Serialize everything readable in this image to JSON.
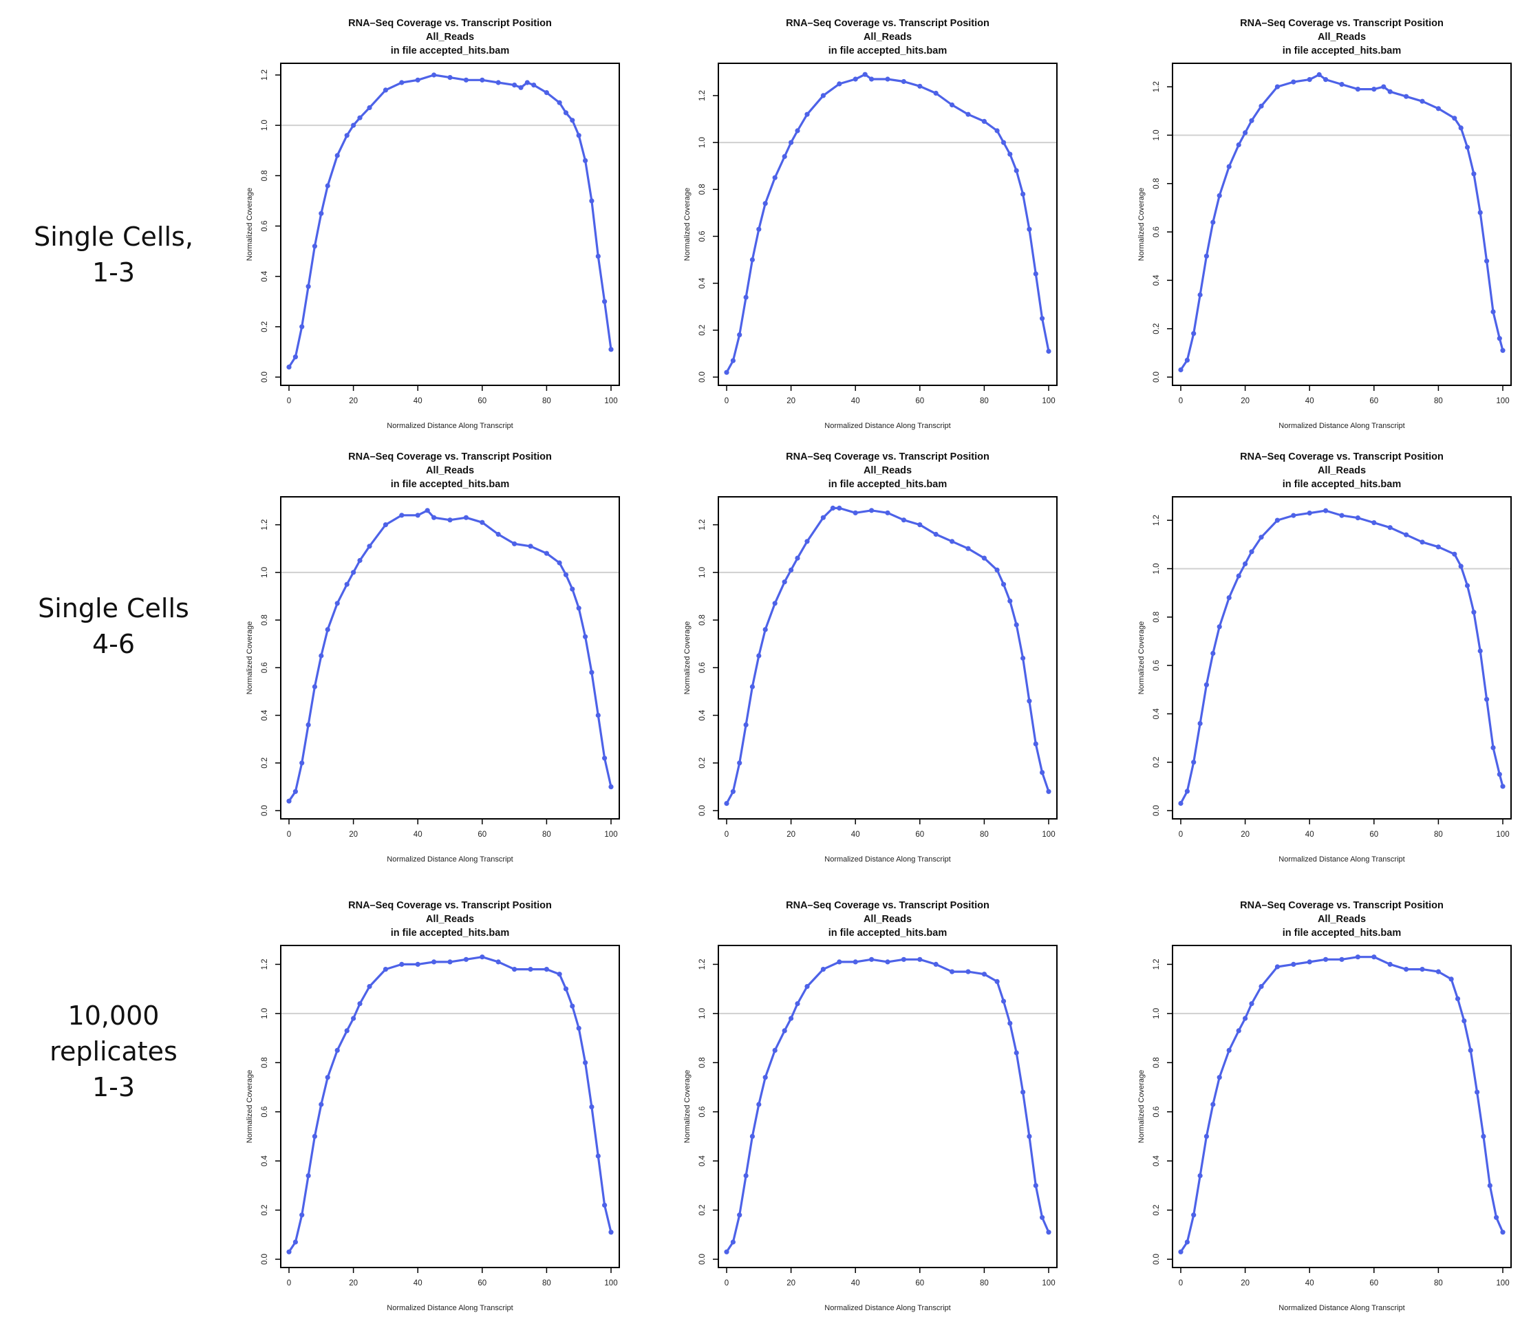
{
  "row_labels": [
    "Single Cells,\n1-3",
    "Single Cells\n4-6",
    "10,000 replicates\n1-3"
  ],
  "colors": {
    "series": "#4d62e8",
    "reference_line": "#d0d0d0",
    "frame": "#000000"
  },
  "chart_data": [
    {
      "type": "line",
      "title": [
        "RNA–Seq Coverage vs. Transcript Position",
        "All_Reads",
        "in file accepted_hits.bam"
      ],
      "xlabel": "Normalized Distance Along Transcript",
      "ylabel": "Normalized Coverage",
      "xlim": [
        0,
        100
      ],
      "ylim": [
        0,
        1.23
      ],
      "xticks": [
        "0",
        "20",
        "40",
        "60",
        "80",
        "100"
      ],
      "yticks": [
        "0.0",
        "0.2",
        "0.4",
        "0.6",
        "0.8",
        "1.0",
        "1.2"
      ],
      "reference_y": 1.0,
      "x": [
        0,
        2,
        4,
        6,
        8,
        10,
        12,
        15,
        18,
        20,
        22,
        25,
        30,
        35,
        40,
        45,
        50,
        55,
        60,
        65,
        70,
        72,
        74,
        76,
        80,
        84,
        86,
        88,
        90,
        92,
        94,
        96,
        98,
        100
      ],
      "values": [
        0.04,
        0.08,
        0.2,
        0.36,
        0.52,
        0.65,
        0.76,
        0.88,
        0.96,
        1.0,
        1.03,
        1.07,
        1.14,
        1.17,
        1.18,
        1.2,
        1.19,
        1.18,
        1.18,
        1.17,
        1.16,
        1.15,
        1.17,
        1.16,
        1.13,
        1.09,
        1.05,
        1.02,
        0.96,
        0.86,
        0.7,
        0.48,
        0.3,
        0.11
      ]
    },
    {
      "type": "line",
      "title": [
        "RNA–Seq Coverage vs. Transcript Position",
        "All_Reads",
        "in file accepted_hits.bam"
      ],
      "xlabel": "Normalized Distance Along Transcript",
      "ylabel": "Normalized Coverage",
      "xlim": [
        0,
        100
      ],
      "ylim": [
        0,
        1.32
      ],
      "xticks": [
        "0",
        "20",
        "40",
        "60",
        "80",
        "100"
      ],
      "yticks": [
        "0.0",
        "0.2",
        "0.4",
        "0.6",
        "0.8",
        "1.0",
        "1.2"
      ],
      "reference_y": 1.0,
      "x": [
        0,
        2,
        4,
        6,
        8,
        10,
        12,
        15,
        18,
        20,
        22,
        25,
        30,
        35,
        40,
        43,
        45,
        50,
        55,
        60,
        65,
        70,
        75,
        80,
        84,
        86,
        88,
        90,
        92,
        94,
        96,
        98,
        100
      ],
      "values": [
        0.02,
        0.07,
        0.18,
        0.34,
        0.5,
        0.63,
        0.74,
        0.85,
        0.94,
        1.0,
        1.05,
        1.12,
        1.2,
        1.25,
        1.27,
        1.29,
        1.27,
        1.27,
        1.26,
        1.24,
        1.21,
        1.16,
        1.12,
        1.09,
        1.05,
        1.0,
        0.95,
        0.88,
        0.78,
        0.63,
        0.44,
        0.25,
        0.11
      ]
    },
    {
      "type": "line",
      "title": [
        "RNA–Seq Coverage vs. Transcript Position",
        "All_Reads",
        "in file accepted_hits.bam"
      ],
      "xlabel": "Normalized Distance Along Transcript",
      "ylabel": "Normalized Coverage",
      "xlim": [
        0,
        100
      ],
      "ylim": [
        0,
        1.28
      ],
      "xticks": [
        "0",
        "20",
        "40",
        "60",
        "80",
        "100"
      ],
      "yticks": [
        "0.0",
        "0.2",
        "0.4",
        "0.6",
        "0.8",
        "1.0",
        "1.2"
      ],
      "reference_y": 1.0,
      "x": [
        0,
        2,
        4,
        6,
        8,
        10,
        12,
        15,
        18,
        20,
        22,
        25,
        30,
        35,
        40,
        43,
        45,
        50,
        55,
        60,
        63,
        65,
        70,
        75,
        80,
        85,
        87,
        89,
        91,
        93,
        95,
        97,
        99,
        100
      ],
      "values": [
        0.03,
        0.07,
        0.18,
        0.34,
        0.5,
        0.64,
        0.75,
        0.87,
        0.96,
        1.01,
        1.06,
        1.12,
        1.2,
        1.22,
        1.23,
        1.25,
        1.23,
        1.21,
        1.19,
        1.19,
        1.2,
        1.18,
        1.16,
        1.14,
        1.11,
        1.07,
        1.03,
        0.95,
        0.84,
        0.68,
        0.48,
        0.27,
        0.16,
        0.11
      ]
    },
    {
      "type": "line",
      "title": [
        "RNA–Seq Coverage vs. Transcript Position",
        "All_Reads",
        "in file accepted_hits.bam"
      ],
      "xlabel": "Normalized Distance Along Transcript",
      "ylabel": "Normalized Coverage",
      "xlim": [
        0,
        100
      ],
      "ylim": [
        0,
        1.3
      ],
      "xticks": [
        "0",
        "20",
        "40",
        "60",
        "80",
        "100"
      ],
      "yticks": [
        "0.0",
        "0.2",
        "0.4",
        "0.6",
        "0.8",
        "1.0",
        "1.2"
      ],
      "reference_y": 1.0,
      "x": [
        0,
        2,
        4,
        6,
        8,
        10,
        12,
        15,
        18,
        20,
        22,
        25,
        30,
        35,
        40,
        43,
        45,
        50,
        55,
        60,
        65,
        70,
        75,
        80,
        84,
        86,
        88,
        90,
        92,
        94,
        96,
        98,
        100
      ],
      "values": [
        0.04,
        0.08,
        0.2,
        0.36,
        0.52,
        0.65,
        0.76,
        0.87,
        0.95,
        1.0,
        1.05,
        1.11,
        1.2,
        1.24,
        1.24,
        1.26,
        1.23,
        1.22,
        1.23,
        1.21,
        1.16,
        1.12,
        1.11,
        1.08,
        1.04,
        0.99,
        0.93,
        0.85,
        0.73,
        0.58,
        0.4,
        0.22,
        0.1
      ]
    },
    {
      "type": "line",
      "title": [
        "RNA–Seq Coverage vs. Transcript Position",
        "All_Reads",
        "in file accepted_hits.bam"
      ],
      "xlabel": "Normalized Distance Along Transcript",
      "ylabel": "Normalized Coverage",
      "xlim": [
        0,
        100
      ],
      "ylim": [
        0,
        1.3
      ],
      "xticks": [
        "0",
        "20",
        "40",
        "60",
        "80",
        "100"
      ],
      "yticks": [
        "0.0",
        "0.2",
        "0.4",
        "0.6",
        "0.8",
        "1.0",
        "1.2"
      ],
      "reference_y": 1.0,
      "x": [
        0,
        2,
        4,
        6,
        8,
        10,
        12,
        15,
        18,
        20,
        22,
        25,
        30,
        33,
        35,
        40,
        45,
        50,
        55,
        60,
        65,
        70,
        75,
        80,
        84,
        86,
        88,
        90,
        92,
        94,
        96,
        98,
        100
      ],
      "values": [
        0.03,
        0.08,
        0.2,
        0.36,
        0.52,
        0.65,
        0.76,
        0.87,
        0.96,
        1.01,
        1.06,
        1.13,
        1.23,
        1.27,
        1.27,
        1.25,
        1.26,
        1.25,
        1.22,
        1.2,
        1.16,
        1.13,
        1.1,
        1.06,
        1.01,
        0.95,
        0.88,
        0.78,
        0.64,
        0.46,
        0.28,
        0.16,
        0.08
      ]
    },
    {
      "type": "line",
      "title": [
        "RNA–Seq Coverage vs. Transcript Position",
        "All_Reads",
        "in file accepted_hits.bam"
      ],
      "xlabel": "Normalized Distance Along Transcript",
      "ylabel": "Normalized Coverage",
      "xlim": [
        0,
        100
      ],
      "ylim": [
        0,
        1.28
      ],
      "xticks": [
        "0",
        "20",
        "40",
        "60",
        "80",
        "100"
      ],
      "yticks": [
        "0.0",
        "0.2",
        "0.4",
        "0.6",
        "0.8",
        "1.0",
        "1.2"
      ],
      "reference_y": 1.0,
      "x": [
        0,
        2,
        4,
        6,
        8,
        10,
        12,
        15,
        18,
        20,
        22,
        25,
        30,
        35,
        40,
        45,
        50,
        55,
        60,
        65,
        70,
        75,
        80,
        85,
        87,
        89,
        91,
        93,
        95,
        97,
        99,
        100
      ],
      "values": [
        0.03,
        0.08,
        0.2,
        0.36,
        0.52,
        0.65,
        0.76,
        0.88,
        0.97,
        1.02,
        1.07,
        1.13,
        1.2,
        1.22,
        1.23,
        1.24,
        1.22,
        1.21,
        1.19,
        1.17,
        1.14,
        1.11,
        1.09,
        1.06,
        1.01,
        0.93,
        0.82,
        0.66,
        0.46,
        0.26,
        0.15,
        0.1
      ]
    },
    {
      "type": "line",
      "title": [
        "RNA–Seq Coverage vs. Transcript Position",
        "All_Reads",
        "in file accepted_hits.bam"
      ],
      "xlabel": "Normalized Distance Along Transcript",
      "ylabel": "Normalized Coverage",
      "xlim": [
        0,
        100
      ],
      "ylim": [
        0,
        1.26
      ],
      "xticks": [
        "0",
        "20",
        "40",
        "60",
        "80",
        "100"
      ],
      "yticks": [
        "0.0",
        "0.2",
        "0.4",
        "0.6",
        "0.8",
        "1.0",
        "1.2"
      ],
      "reference_y": 1.0,
      "x": [
        0,
        2,
        4,
        6,
        8,
        10,
        12,
        15,
        18,
        20,
        22,
        25,
        30,
        35,
        40,
        45,
        50,
        55,
        60,
        65,
        70,
        75,
        80,
        84,
        86,
        88,
        90,
        92,
        94,
        96,
        98,
        100
      ],
      "values": [
        0.03,
        0.07,
        0.18,
        0.34,
        0.5,
        0.63,
        0.74,
        0.85,
        0.93,
        0.98,
        1.04,
        1.11,
        1.18,
        1.2,
        1.2,
        1.21,
        1.21,
        1.22,
        1.23,
        1.21,
        1.18,
        1.18,
        1.18,
        1.16,
        1.1,
        1.03,
        0.94,
        0.8,
        0.62,
        0.42,
        0.22,
        0.11
      ]
    },
    {
      "type": "line",
      "title": [
        "RNA–Seq Coverage vs. Transcript Position",
        "All_Reads",
        "in file accepted_hits.bam"
      ],
      "xlabel": "Normalized Distance Along Transcript",
      "ylabel": "Normalized Coverage",
      "xlim": [
        0,
        100
      ],
      "ylim": [
        0,
        1.26
      ],
      "xticks": [
        "0",
        "20",
        "40",
        "60",
        "80",
        "100"
      ],
      "yticks": [
        "0.0",
        "0.2",
        "0.4",
        "0.6",
        "0.8",
        "1.0",
        "1.2"
      ],
      "reference_y": 1.0,
      "x": [
        0,
        2,
        4,
        6,
        8,
        10,
        12,
        15,
        18,
        20,
        22,
        25,
        30,
        35,
        40,
        45,
        50,
        55,
        60,
        65,
        70,
        75,
        80,
        84,
        86,
        88,
        90,
        92,
        94,
        96,
        98,
        100
      ],
      "values": [
        0.03,
        0.07,
        0.18,
        0.34,
        0.5,
        0.63,
        0.74,
        0.85,
        0.93,
        0.98,
        1.04,
        1.11,
        1.18,
        1.21,
        1.21,
        1.22,
        1.21,
        1.22,
        1.22,
        1.2,
        1.17,
        1.17,
        1.16,
        1.13,
        1.05,
        0.96,
        0.84,
        0.68,
        0.5,
        0.3,
        0.17,
        0.11
      ]
    },
    {
      "type": "line",
      "title": [
        "RNA–Seq Coverage vs. Transcript Position",
        "All_Reads",
        "in file accepted_hits.bam"
      ],
      "xlabel": "Normalized Distance Along Transcript",
      "ylabel": "Normalized Coverage",
      "xlim": [
        0,
        100
      ],
      "ylim": [
        0,
        1.26
      ],
      "xticks": [
        "0",
        "20",
        "40",
        "60",
        "80",
        "100"
      ],
      "yticks": [
        "0.0",
        "0.2",
        "0.4",
        "0.6",
        "0.8",
        "1.0",
        "1.2"
      ],
      "reference_y": 1.0,
      "x": [
        0,
        2,
        4,
        6,
        8,
        10,
        12,
        15,
        18,
        20,
        22,
        25,
        30,
        35,
        40,
        45,
        50,
        55,
        60,
        65,
        70,
        75,
        80,
        84,
        86,
        88,
        90,
        92,
        94,
        96,
        98,
        100
      ],
      "values": [
        0.03,
        0.07,
        0.18,
        0.34,
        0.5,
        0.63,
        0.74,
        0.85,
        0.93,
        0.98,
        1.04,
        1.11,
        1.19,
        1.2,
        1.21,
        1.22,
        1.22,
        1.23,
        1.23,
        1.2,
        1.18,
        1.18,
        1.17,
        1.14,
        1.06,
        0.97,
        0.85,
        0.68,
        0.5,
        0.3,
        0.17,
        0.11
      ]
    }
  ]
}
